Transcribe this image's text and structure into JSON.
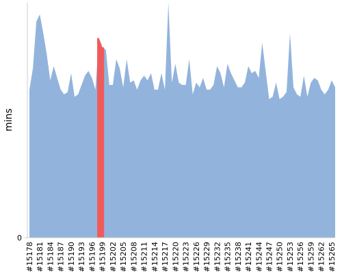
{
  "chart_data": {
    "type": "area",
    "y_label": "mins",
    "categories": [
      "#15178",
      null,
      null,
      "#15181",
      null,
      null,
      "#15184",
      null,
      null,
      "#15187",
      null,
      null,
      "#15190",
      null,
      null,
      "#15193",
      null,
      null,
      "#15196",
      null,
      null,
      "#15199",
      null,
      null,
      "#15202",
      null,
      null,
      "#15205",
      null,
      null,
      "#15208",
      null,
      null,
      "#15211",
      null,
      null,
      "#15214",
      null,
      null,
      "#15217",
      null,
      null,
      "#15220",
      null,
      null,
      "#15223",
      null,
      null,
      "#15226",
      null,
      null,
      "#15229",
      null,
      null,
      "#15232",
      null,
      null,
      "#15235",
      null,
      null,
      "#15238",
      null,
      null,
      "#15241",
      null,
      null,
      "#15244",
      null,
      null,
      "#15247",
      null,
      null,
      "#15250",
      null,
      null,
      "#15253",
      null,
      null,
      "#15256",
      null,
      null,
      "#15259",
      null,
      null,
      "#15262",
      null,
      null,
      "#15265",
      null
    ],
    "series": [
      {
        "color": "#92b4dc",
        "values": [
          63,
          72,
          92,
          95,
          87,
          78,
          67,
          73,
          68,
          63,
          61,
          62,
          70,
          60,
          61,
          65,
          69,
          71,
          68,
          63,
          85,
          81,
          80,
          65,
          65,
          76,
          72,
          64,
          76,
          66,
          67,
          63,
          67,
          69,
          67,
          70,
          63,
          63,
          70,
          63,
          100,
          66,
          74,
          66,
          65,
          65,
          76,
          61,
          66,
          64,
          68,
          63,
          63,
          65,
          73,
          70,
          64,
          74,
          70,
          67,
          64,
          64,
          66,
          73,
          70,
          71,
          68,
          83,
          71,
          59,
          60,
          66,
          59,
          60,
          62,
          87,
          64,
          61,
          60,
          69,
          60,
          66,
          68,
          67,
          63,
          61,
          63,
          67,
          64
        ]
      },
      {
        "color": "#ef5b5b",
        "values": [
          null,
          null,
          null,
          null,
          null,
          null,
          null,
          null,
          null,
          null,
          null,
          null,
          null,
          null,
          null,
          null,
          null,
          null,
          null,
          null,
          85,
          81,
          null,
          null,
          null,
          null,
          null,
          null,
          null,
          null,
          null,
          null,
          null,
          null,
          null,
          null,
          null,
          null,
          null,
          null,
          null,
          null,
          null,
          null,
          null,
          null,
          null,
          null,
          null,
          null,
          null,
          null,
          null,
          null,
          null,
          null,
          null,
          null,
          null,
          null,
          null,
          null,
          null,
          null,
          null,
          null,
          null,
          null,
          null,
          null,
          null,
          null,
          null,
          null,
          null,
          null,
          null,
          null,
          null,
          null,
          null,
          null,
          null,
          null,
          null,
          null,
          null,
          null,
          null
        ]
      }
    ],
    "ylim": [
      0,
      100
    ],
    "yticks": [
      0
    ]
  }
}
